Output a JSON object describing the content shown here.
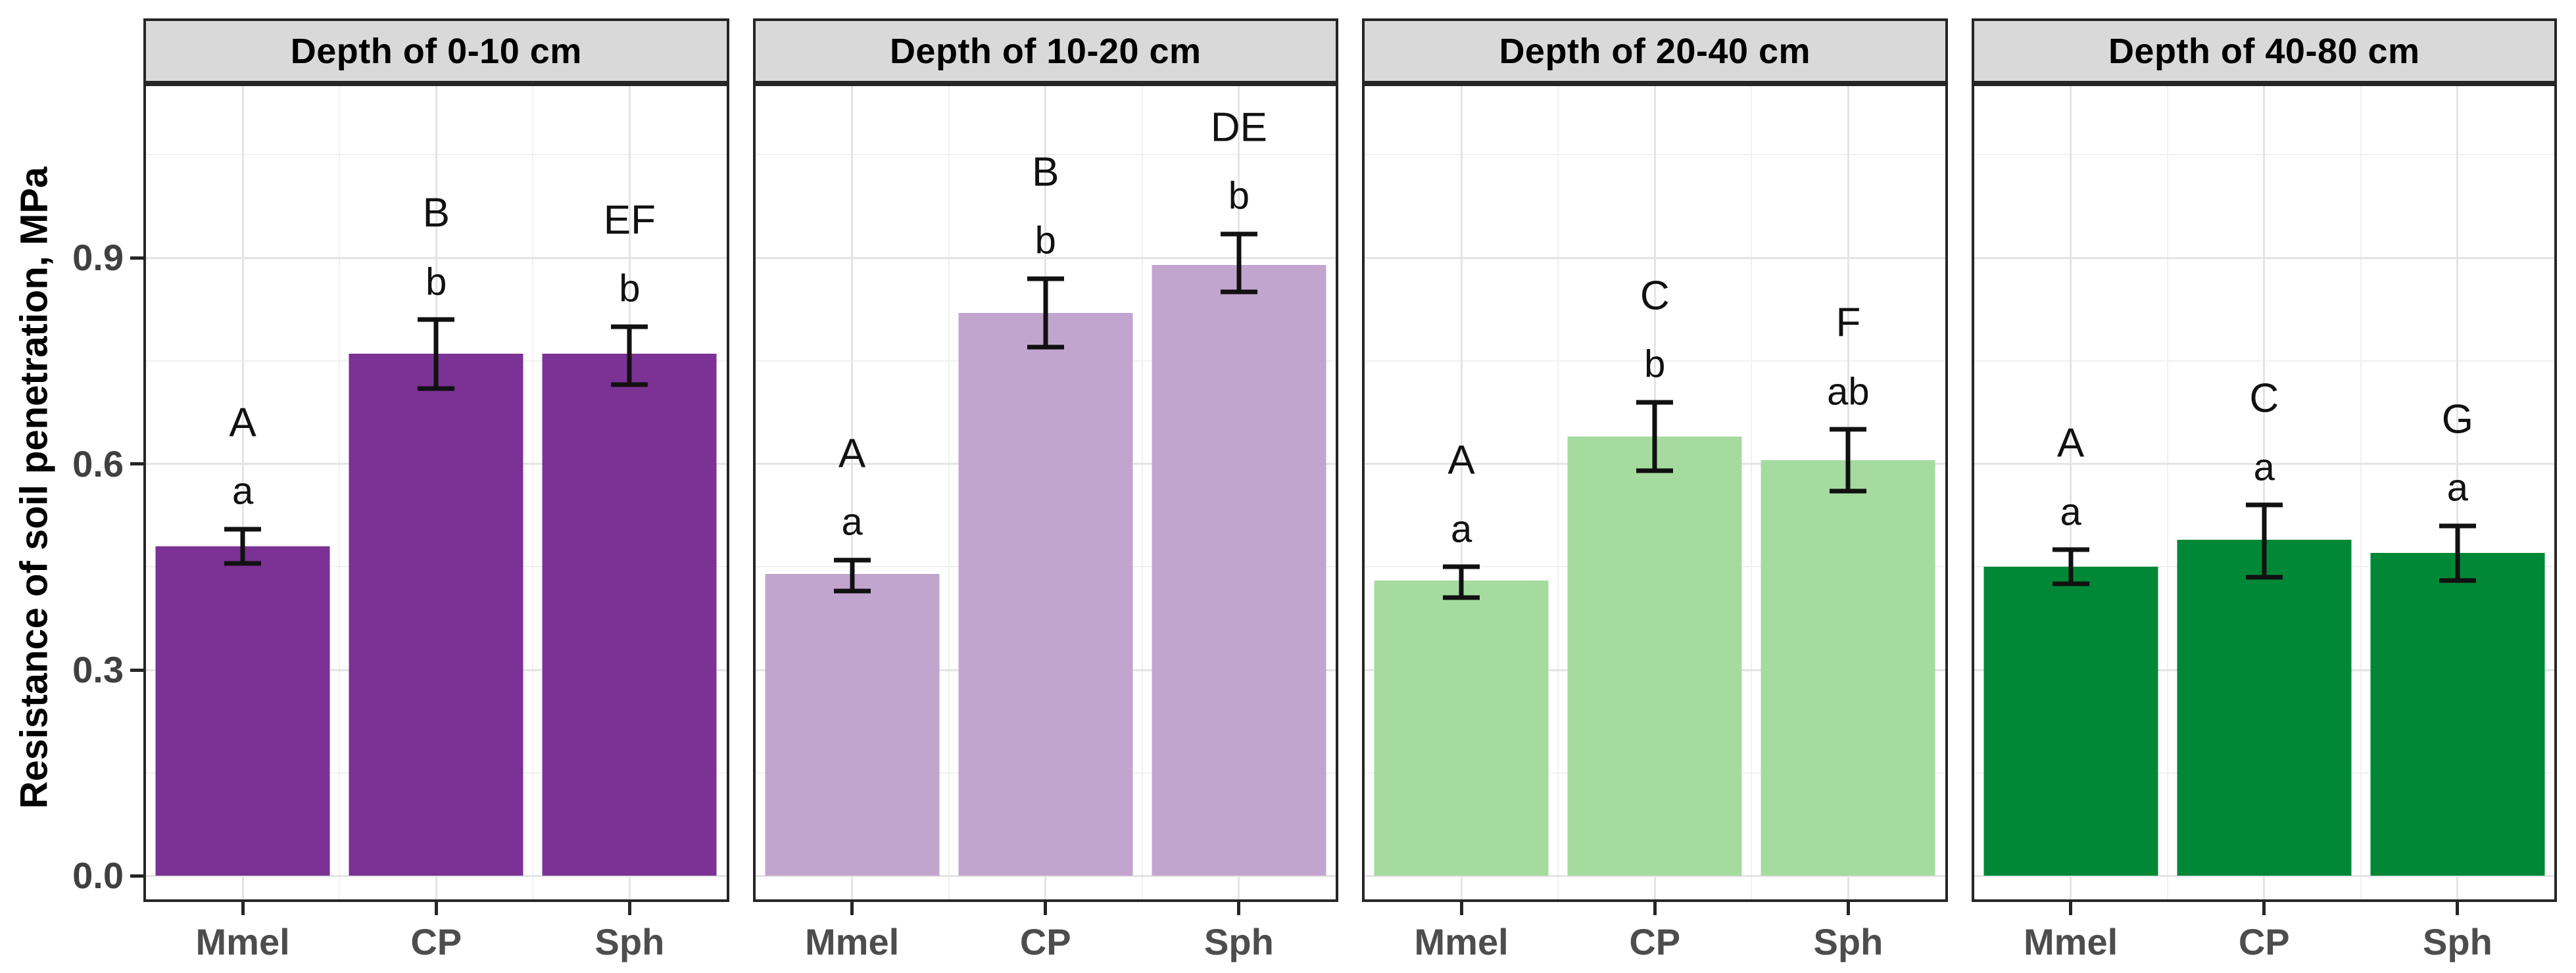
{
  "figure": {
    "y_axis_title": "Resistance of soil penetration, MPa",
    "y_tick_labels": [
      "0.0",
      "0.3",
      "0.6",
      "0.9"
    ]
  },
  "chart_data": {
    "type": "bar",
    "title": "",
    "xlabel": "",
    "ylabel": "Resistance of soil penetration, MPa",
    "categories": [
      "Mmel",
      "CP",
      "Sph"
    ],
    "y_tick_values": [
      0.0,
      0.3,
      0.6,
      0.9
    ],
    "y_minor_tick_values": [
      0.15,
      0.45,
      0.75,
      1.05
    ],
    "ylim": [
      -0.034,
      1.15
    ],
    "grid": true,
    "legend": "none",
    "error_bars": true,
    "panels": [
      {
        "facet_label": "Depth of 0-10 cm",
        "bar_color": "#7b3294",
        "bars": [
          {
            "category": "Mmel",
            "value": 0.48,
            "err_low": 0.455,
            "err_high": 0.505,
            "letter_upper": "A",
            "letter_lower": "a"
          },
          {
            "category": "CP",
            "value": 0.76,
            "err_low": 0.71,
            "err_high": 0.81,
            "letter_upper": "B",
            "letter_lower": "b"
          },
          {
            "category": "Sph",
            "value": 0.76,
            "err_low": 0.715,
            "err_high": 0.8,
            "letter_upper": "EF",
            "letter_lower": "b"
          }
        ]
      },
      {
        "facet_label": "Depth of 10-20 cm",
        "bar_color": "#c2a5cf",
        "bars": [
          {
            "category": "Mmel",
            "value": 0.44,
            "err_low": 0.415,
            "err_high": 0.46,
            "letter_upper": "A",
            "letter_lower": "a"
          },
          {
            "category": "CP",
            "value": 0.82,
            "err_low": 0.77,
            "err_high": 0.87,
            "letter_upper": "B",
            "letter_lower": "b"
          },
          {
            "category": "Sph",
            "value": 0.89,
            "err_low": 0.85,
            "err_high": 0.935,
            "letter_upper": "DE",
            "letter_lower": "b"
          }
        ]
      },
      {
        "facet_label": "Depth of 20-40 cm",
        "bar_color": "#a6dba0",
        "bars": [
          {
            "category": "Mmel",
            "value": 0.43,
            "err_low": 0.405,
            "err_high": 0.45,
            "letter_upper": "A",
            "letter_lower": "a"
          },
          {
            "category": "CP",
            "value": 0.64,
            "err_low": 0.59,
            "err_high": 0.69,
            "letter_upper": "C",
            "letter_lower": "b"
          },
          {
            "category": "Sph",
            "value": 0.605,
            "err_low": 0.56,
            "err_high": 0.65,
            "letter_upper": "F",
            "letter_lower": "ab"
          }
        ]
      },
      {
        "facet_label": "Depth of 40-80 cm",
        "bar_color": "#008837",
        "bars": [
          {
            "category": "Mmel",
            "value": 0.45,
            "err_low": 0.425,
            "err_high": 0.475,
            "letter_upper": "A",
            "letter_lower": "a"
          },
          {
            "category": "CP",
            "value": 0.49,
            "err_low": 0.435,
            "err_high": 0.54,
            "letter_upper": "C",
            "letter_lower": "a"
          },
          {
            "category": "Sph",
            "value": 0.47,
            "err_low": 0.43,
            "err_high": 0.51,
            "letter_upper": "G",
            "letter_lower": "a"
          }
        ]
      }
    ]
  },
  "style": {
    "strip_background": "#d9d9d9",
    "panel_border": "#262626",
    "major_grid": "#e4e4e4",
    "minor_grid": "#f1f1f1",
    "error_bar_color": "#111111",
    "letter_color": "#111111",
    "axis_text_color": "#4d4d4d",
    "bar_palette": [
      "#7b3294",
      "#c2a5cf",
      "#a6dba0",
      "#008837"
    ]
  }
}
